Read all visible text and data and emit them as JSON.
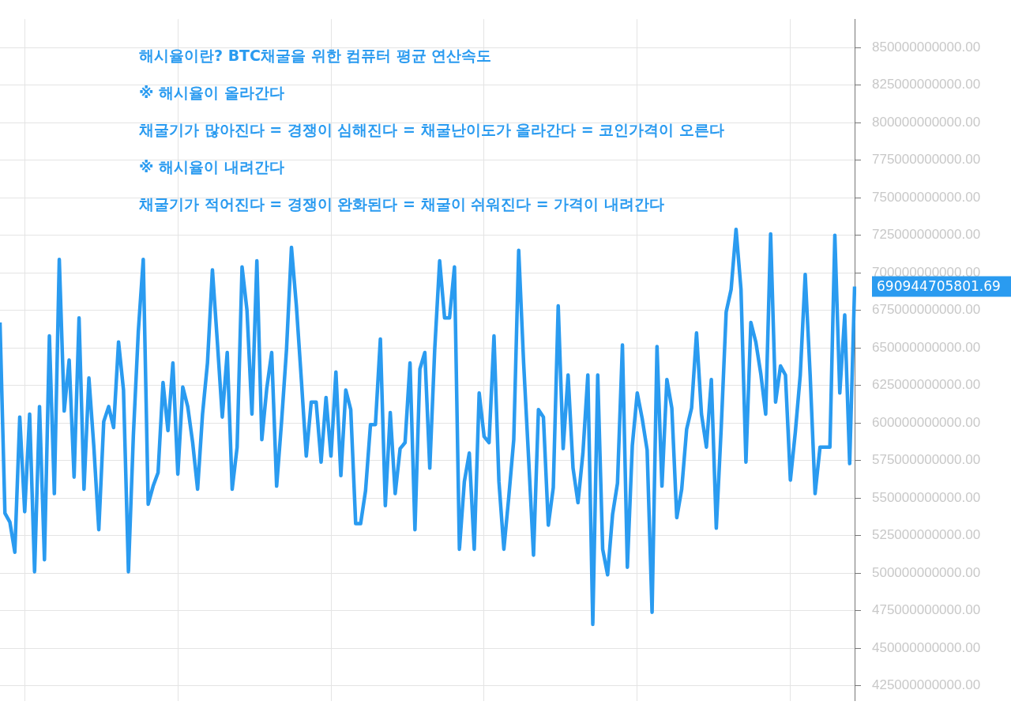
{
  "chart_data": {
    "type": "line",
    "categories": [
      null,
      null,
      null,
      null,
      null,
      null,
      null,
      null,
      null,
      null,
      null,
      null,
      null,
      null,
      null,
      null,
      null,
      null,
      null,
      null,
      null,
      null,
      null,
      null,
      null,
      null,
      null,
      null,
      null,
      null,
      null,
      null,
      null,
      null,
      null,
      null,
      null,
      null,
      null,
      null,
      null,
      null,
      null,
      null,
      null,
      null,
      null,
      null,
      null,
      null,
      null,
      null,
      null,
      null,
      null,
      null,
      null,
      null,
      null,
      null,
      null,
      null,
      null,
      null,
      null,
      null,
      null,
      null,
      null,
      null,
      null,
      null,
      null,
      null,
      null,
      null,
      null,
      null,
      null,
      null,
      null,
      null,
      null,
      null,
      null,
      null,
      null,
      null,
      null,
      null,
      null,
      null,
      null,
      null,
      null,
      null,
      null,
      null,
      null,
      null,
      null,
      null,
      null,
      null,
      null,
      null,
      null,
      null,
      null,
      null,
      null,
      null,
      null,
      null,
      null,
      null,
      null,
      null,
      null,
      null,
      null,
      null,
      null,
      null,
      null,
      null,
      null,
      null,
      null,
      null,
      null,
      null,
      null,
      null,
      null,
      null,
      null,
      null,
      null,
      null,
      null,
      null,
      null,
      null,
      null,
      null,
      null,
      null,
      null,
      null,
      null,
      null,
      null,
      null,
      null,
      null,
      null,
      null,
      null,
      null,
      null,
      null,
      null,
      null,
      null,
      null,
      null,
      null,
      null,
      null,
      null,
      null,
      null,
      null
    ],
    "series": [
      {
        "color": "#2a9bf0",
        "values": [
          667000000000,
          540000000000,
          534000000000,
          514000000000,
          604000000000,
          541000000000,
          606000000000,
          501000000000,
          611000000000,
          509000000000,
          658000000000,
          553000000000,
          709000000000,
          608000000000,
          642000000000,
          564000000000,
          670000000000,
          556000000000,
          630000000000,
          584000000000,
          529000000000,
          601000000000,
          611000000000,
          597000000000,
          654000000000,
          622000000000,
          501000000000,
          592000000000,
          661000000000,
          709000000000,
          546000000000,
          558000000000,
          567000000000,
          627000000000,
          595000000000,
          640000000000,
          566000000000,
          624000000000,
          611000000000,
          587000000000,
          556000000000,
          606000000000,
          640000000000,
          702000000000,
          654000000000,
          604000000000,
          647000000000,
          556000000000,
          584000000000,
          704000000000,
          675000000000,
          606000000000,
          708000000000,
          589000000000,
          623000000000,
          647000000000,
          558000000000,
          601000000000,
          649000000000,
          717000000000,
          678000000000,
          629000000000,
          578000000000,
          614000000000,
          614000000000,
          574000000000,
          617000000000,
          578000000000,
          634000000000,
          565000000000,
          622000000000,
          609000000000,
          533000000000,
          533000000000,
          555000000000,
          599000000000,
          599000000000,
          656000000000,
          545000000000,
          607000000000,
          553000000000,
          583000000000,
          587000000000,
          640000000000,
          529000000000,
          636000000000,
          647000000000,
          570000000000,
          649000000000,
          708000000000,
          670000000000,
          670000000000,
          704000000000,
          516000000000,
          561000000000,
          580000000000,
          516000000000,
          620000000000,
          591000000000,
          587000000000,
          658000000000,
          561000000000,
          516000000000,
          551000000000,
          589000000000,
          715000000000,
          640000000000,
          577000000000,
          512000000000,
          609000000000,
          604000000000,
          532000000000,
          557000000000,
          678000000000,
          583000000000,
          632000000000,
          570000000000,
          547000000000,
          580000000000,
          632000000000,
          466000000000,
          632000000000,
          516000000000,
          499000000000,
          539000000000,
          560000000000,
          652000000000,
          504000000000,
          585000000000,
          620000000000,
          603000000000,
          582000000000,
          474000000000,
          651000000000,
          558000000000,
          629000000000,
          610000000000,
          537000000000,
          556000000000,
          596000000000,
          610000000000,
          660000000000,
          606000000000,
          584000000000,
          629000000000,
          530000000000,
          597000000000,
          674000000000,
          689000000000,
          729000000000,
          689000000000,
          574000000000,
          667000000000,
          654000000000,
          633000000000,
          606000000000,
          726000000000,
          614000000000,
          638000000000,
          632000000000,
          562000000000,
          594000000000,
          632000000000,
          699000000000,
          632000000000,
          553000000000,
          584000000000,
          584000000000,
          584000000000,
          725000000000,
          620000000000,
          672000000000,
          573000000000,
          690944705801.69
        ]
      }
    ],
    "ylim": [
      415000000000,
      869000000000
    ],
    "yticks": [
      {
        "value": 425000000000,
        "label": "425000000000.00"
      },
      {
        "value": 450000000000,
        "label": "450000000000.00"
      },
      {
        "value": 475000000000,
        "label": "475000000000.00"
      },
      {
        "value": 500000000000,
        "label": "500000000000.00"
      },
      {
        "value": 525000000000,
        "label": "525000000000.00"
      },
      {
        "value": 550000000000,
        "label": "550000000000.00"
      },
      {
        "value": 575000000000,
        "label": "575000000000.00"
      },
      {
        "value": 600000000000,
        "label": "600000000000.00"
      },
      {
        "value": 625000000000,
        "label": "625000000000.00"
      },
      {
        "value": 650000000000,
        "label": "650000000000.00"
      },
      {
        "value": 675000000000,
        "label": "675000000000.00"
      },
      {
        "value": 700000000000,
        "label": "700000000000.00"
      },
      {
        "value": 725000000000,
        "label": "725000000000.00"
      },
      {
        "value": 750000000000,
        "label": "750000000000.00"
      },
      {
        "value": 775000000000,
        "label": "775000000000.00"
      },
      {
        "value": 800000000000,
        "label": "800000000000.00"
      },
      {
        "value": 825000000000,
        "label": "825000000000.00"
      },
      {
        "value": 850000000000,
        "label": "850000000000.00"
      }
    ],
    "annotations": [
      "해시율이란? BTC채굴을 위한 컴퓨터 평균 연산속도",
      "※ 해시율이 올라간다",
      "채굴기가 많아진다 = 경쟁이 심해진다 = 채굴난이도가 올라간다 = 코인가격이 오른다",
      "※ 해시율이 내려간다",
      "채굴기가 적어진다 = 경쟁이 완화된다 = 채굴이 쉬워진다 = 가격이 내려간다",
      "690944705801.69"
    ],
    "grid": true,
    "legend": false,
    "marker": "none",
    "line_style": "solid",
    "tick_labels": "y"
  }
}
